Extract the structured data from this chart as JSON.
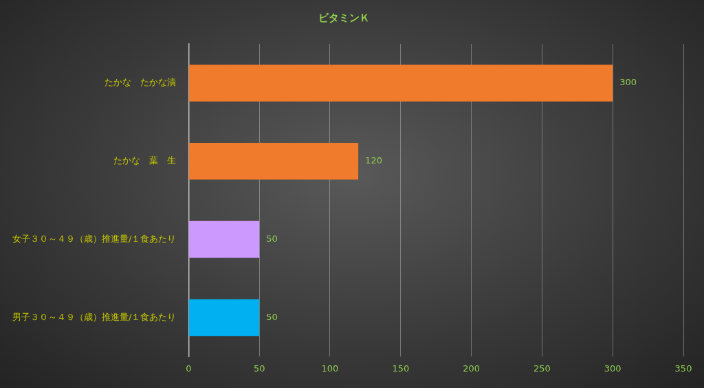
{
  "chart_data": {
    "type": "bar",
    "orientation": "horizontal",
    "title": "ビタミンＫ",
    "categories": [
      "たかな　たかな漬",
      "たかな　葉　生",
      "女子３０～４９（歳）推進量/１食あたり",
      "男子３０～４９（歳）推進量/１食あたり"
    ],
    "values": [
      300,
      120,
      50,
      50
    ],
    "colors": [
      "#f07b2c",
      "#f07b2c",
      "#cc99ff",
      "#00b0f0"
    ],
    "xlim": [
      0,
      350
    ],
    "xticks": [
      0,
      50,
      100,
      150,
      200,
      250,
      300,
      350
    ],
    "grid": "x",
    "legend": false,
    "data_labels": true
  }
}
